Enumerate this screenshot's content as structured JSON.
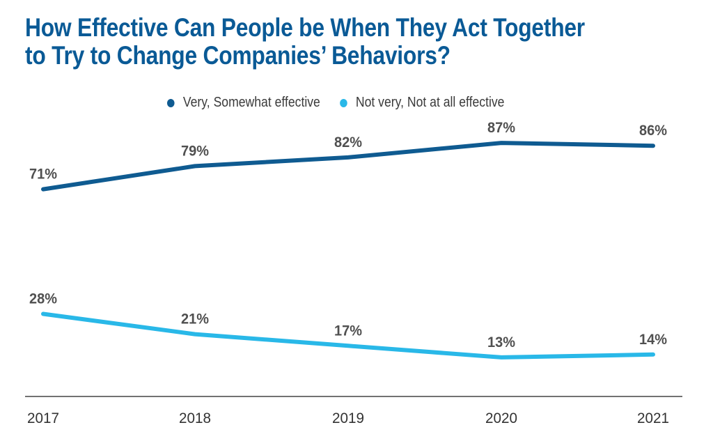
{
  "colors": {
    "title": "#0a5a96",
    "series_dark": "#0f5b91",
    "series_light": "#29b8e8",
    "axis": "#333333",
    "label": "#505050"
  },
  "chart_data": {
    "type": "line",
    "title_lines": [
      "How Effective Can People be When They Act Together",
      "to Try to Change Companies’ Behaviors?"
    ],
    "x": [
      "2017",
      "2018",
      "2019",
      "2020",
      "2021"
    ],
    "series": [
      {
        "name": "Very, Somewhat effective",
        "values": [
          71,
          79,
          82,
          87,
          86
        ],
        "labels": [
          "71%",
          "79%",
          "82%",
          "87%",
          "86%"
        ],
        "color": "#0f5b91"
      },
      {
        "name": "Not very, Not at all effective",
        "values": [
          28,
          21,
          17,
          13,
          14
        ],
        "labels": [
          "28%",
          "21%",
          "17%",
          "13%",
          "14%"
        ],
        "color": "#29b8e8"
      }
    ],
    "legend_position": "top",
    "grid": false
  }
}
